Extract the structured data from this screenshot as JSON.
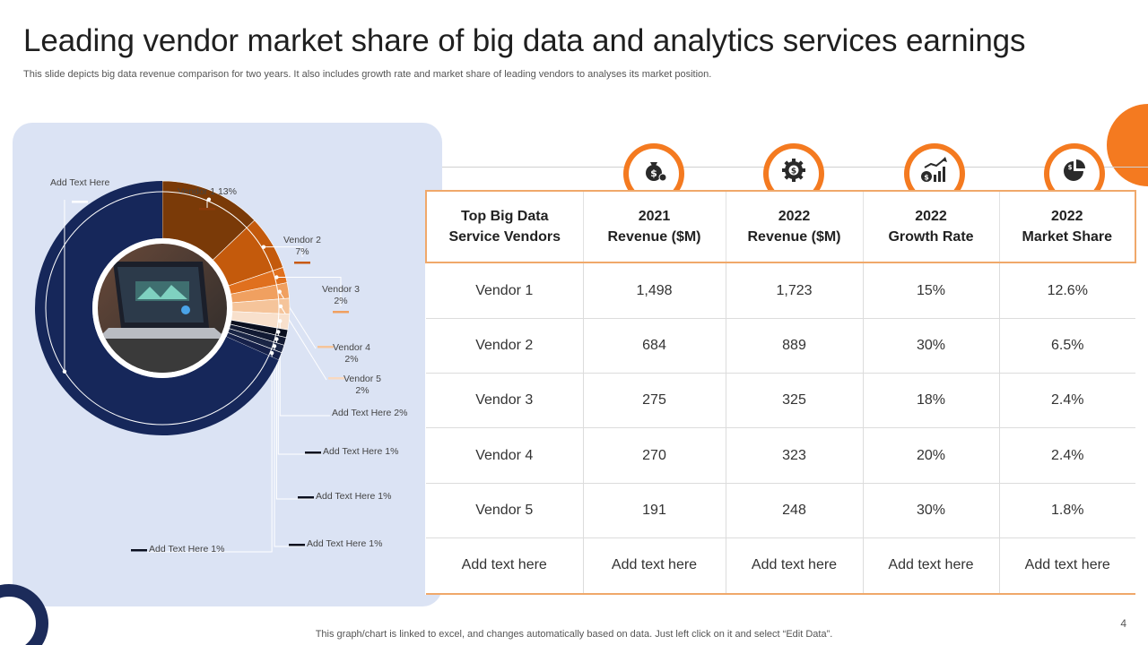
{
  "title": "Leading vendor market share of big data and analytics services earnings",
  "subtitle": "This slide depicts big data revenue comparison for two years. It also includes growth rate and market share of leading vendors to analyses its market position.",
  "footer": "This graph/chart is linked to excel,  and changes automatically based on data. Just left click on it and select “Edit Data”.",
  "page_number": "4",
  "colors": {
    "accent": "#f47a20",
    "navy": "#1c2b5a",
    "panel": "#dbe3f4",
    "table_border": "#f0a86a"
  },
  "icons": [
    "money-bag-icon",
    "gear-dollar-icon",
    "growth-chart-icon",
    "pie-chart-icon"
  ],
  "table": {
    "headers": [
      [
        "Top Big Data",
        "Service Vendors"
      ],
      [
        "2021",
        "Revenue ($M)"
      ],
      [
        "2022",
        "Revenue ($M)"
      ],
      [
        "2022",
        "Growth Rate"
      ],
      [
        "2022",
        "Market Share"
      ]
    ],
    "rows": [
      [
        "Vendor 1",
        "1,498",
        "1,723",
        "15%",
        "12.6%"
      ],
      [
        "Vendor 2",
        "684",
        "889",
        "30%",
        "6.5%"
      ],
      [
        "Vendor 3",
        "275",
        "325",
        "18%",
        "2.4%"
      ],
      [
        "Vendor 4",
        "270",
        "323",
        "20%",
        "2.4%"
      ],
      [
        "Vendor 5",
        "191",
        "248",
        "30%",
        "1.8%"
      ],
      [
        "Add text here",
        "Add text here",
        "Add text here",
        "Add text here",
        "Add text here"
      ]
    ]
  },
  "chart_data": {
    "type": "pie",
    "variant": "donut",
    "title": "",
    "slices": [
      {
        "label": "Vendor 1 13%",
        "value": 13,
        "color": "#7a3a08"
      },
      {
        "label": "Vendor 2 7%",
        "value": 7,
        "color": "#c45a0c"
      },
      {
        "label": "Vendor 3 2%",
        "value": 2,
        "color": "#e0701e"
      },
      {
        "label": "Vendor 4 2%",
        "value": 2,
        "color": "#f0a060"
      },
      {
        "label": "Vendor 5 2%",
        "value": 2,
        "color": "#f5c49a"
      },
      {
        "label": "Add Text Here 2%",
        "value": 2,
        "color": "#f8e0cc"
      },
      {
        "label": "Add Text Here 1%",
        "value": 1,
        "color": "#0a0f1f"
      },
      {
        "label": "Add Text Here 1%",
        "value": 1,
        "color": "#121a33"
      },
      {
        "label": "Add Text Here 1%",
        "value": 1,
        "color": "#1a2545"
      },
      {
        "label": "Add Text Here 1%",
        "value": 1,
        "color": "#16214a"
      },
      {
        "label": "Add Text Here",
        "value": 69,
        "color": "#16275a"
      }
    ]
  }
}
